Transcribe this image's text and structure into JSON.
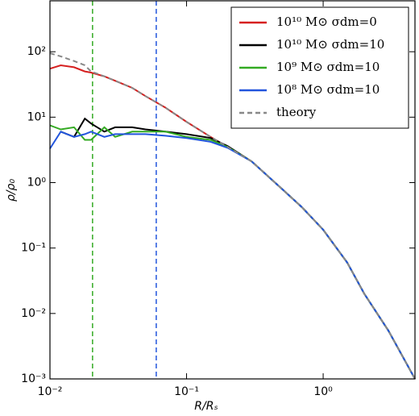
{
  "chart_data": {
    "type": "line",
    "xlabel": "R/Rₛ",
    "ylabel": "ρ/ρ₀",
    "xscale": "log",
    "yscale": "log",
    "xlim": [
      0.01,
      4.7
    ],
    "ylim": [
      0.001,
      600
    ],
    "xticks": [
      {
        "value": 0.01,
        "label": "10⁻²"
      },
      {
        "value": 0.1,
        "label": "10⁻¹"
      },
      {
        "value": 1,
        "label": "10⁰"
      }
    ],
    "yticks": [
      {
        "value": 0.001,
        "label": "10⁻³"
      },
      {
        "value": 0.01,
        "label": "10⁻²"
      },
      {
        "value": 0.1,
        "label": "10⁻¹"
      },
      {
        "value": 1,
        "label": "10⁰"
      },
      {
        "value": 10,
        "label": "10¹"
      },
      {
        "value": 100,
        "label": "10²"
      }
    ],
    "legend": "upper right",
    "x": [
      0.01,
      0.012,
      0.015,
      0.018,
      0.02,
      0.025,
      0.03,
      0.04,
      0.05,
      0.07,
      0.1,
      0.15,
      0.2,
      0.3,
      0.5,
      0.7,
      1,
      1.5,
      2,
      3,
      4.7
    ],
    "series": [
      {
        "name": "10¹⁰ M⊙ σdm=0",
        "color": "#d62020",
        "dashed": false,
        "values": [
          55,
          62,
          58,
          50,
          48,
          42,
          36,
          28,
          21,
          14,
          8.5,
          5,
          3.5,
          2.1,
          0.8,
          0.42,
          0.19,
          0.06,
          0.02,
          0.0055,
          0.001
        ]
      },
      {
        "name": "10¹⁰ M⊙ σdm=10",
        "color": "#000000",
        "dashed": false,
        "values": [
          null,
          6,
          5,
          9.5,
          8,
          6,
          7,
          7,
          6.5,
          6,
          5.5,
          4.8,
          3.6,
          2.1,
          0.8,
          0.42,
          0.19,
          0.06,
          0.02,
          0.0055,
          0.001
        ]
      },
      {
        "name": "10⁹ M⊙ σdm=10",
        "color": "#33aa22",
        "dashed": false,
        "values": [
          7.5,
          6.5,
          7,
          4.5,
          4.5,
          7,
          5,
          6,
          6,
          6,
          5,
          4.5,
          3.5,
          2.1,
          0.8,
          0.42,
          0.19,
          0.06,
          0.02,
          0.0055,
          0.001
        ]
      },
      {
        "name": "10⁸ M⊙ σdm=10",
        "color": "#2255dd",
        "dashed": false,
        "values": [
          3.3,
          6,
          5,
          5.5,
          6,
          5,
          5.5,
          5.5,
          5.5,
          5.2,
          4.8,
          4.2,
          3.4,
          2.1,
          0.8,
          0.42,
          0.19,
          0.06,
          0.02,
          0.0055,
          0.001
        ]
      },
      {
        "name": "theory",
        "color": "#888888",
        "dashed": true,
        "values": [
          95,
          85,
          72,
          62,
          50,
          42,
          36,
          28,
          21,
          14,
          8.5,
          5,
          3.5,
          2.1,
          0.8,
          0.42,
          0.19,
          0.06,
          0.02,
          0.0055,
          0.001
        ]
      }
    ],
    "vlines": [
      {
        "x": 0.0205,
        "color": "#33aa22"
      },
      {
        "x": 0.06,
        "color": "#2255dd"
      }
    ]
  }
}
